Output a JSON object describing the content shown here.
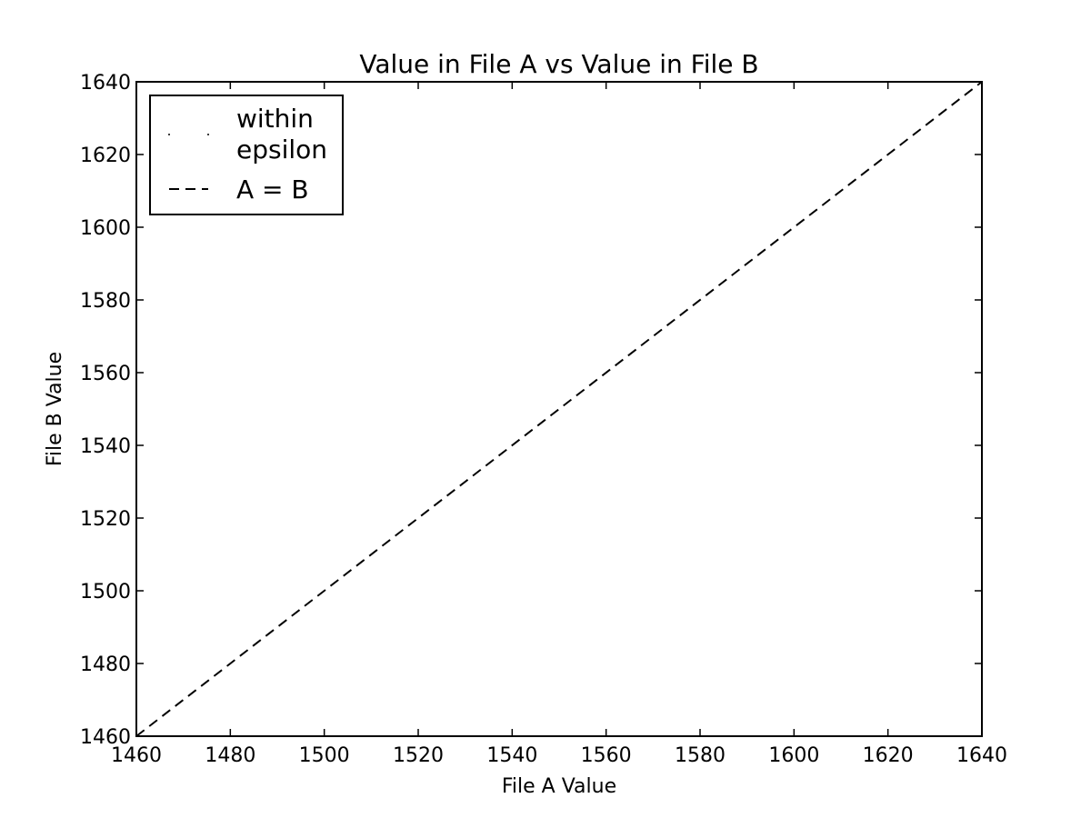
{
  "chart_data": {
    "type": "scatter",
    "title": "Value in File A vs Value in File B",
    "xlabel": "File A Value",
    "ylabel": "File B Value",
    "xlim": [
      1460,
      1640
    ],
    "ylim": [
      1460,
      1640
    ],
    "xticks": [
      1460,
      1480,
      1500,
      1520,
      1540,
      1560,
      1580,
      1600,
      1620,
      1640
    ],
    "yticks": [
      1460,
      1480,
      1500,
      1520,
      1540,
      1560,
      1580,
      1600,
      1620,
      1640
    ],
    "grid": false,
    "legend_position": "top-left",
    "series": [
      {
        "name": "within epsilon",
        "kind": "scatter",
        "x": [],
        "y": [],
        "color": "#000000",
        "legend_lines": [
          "within",
          "epsilon"
        ]
      },
      {
        "name": "A = B",
        "kind": "line",
        "style": "dashed",
        "x": [
          1460,
          1640
        ],
        "y": [
          1460,
          1640
        ],
        "color": "#000000"
      }
    ]
  }
}
